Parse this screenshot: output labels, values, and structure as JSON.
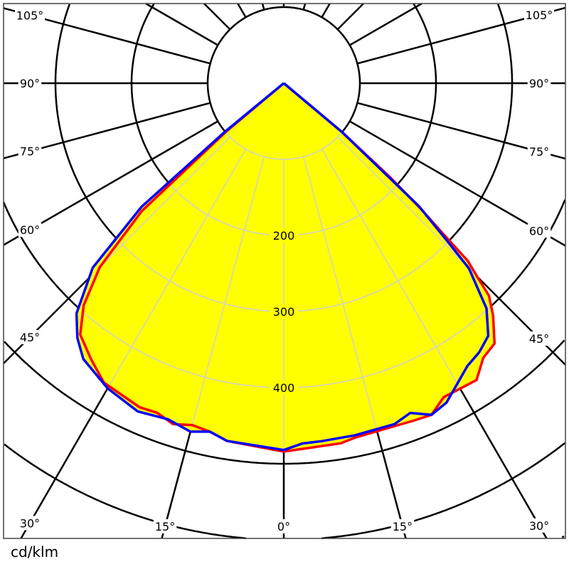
{
  "chart_data": {
    "type": "polar",
    "unit_label": "cd/klm",
    "radial_tick_labels": [
      "200",
      "300",
      "400"
    ],
    "radial_ticks": [
      200,
      300,
      400
    ],
    "radial_grid_step": 100,
    "radial_range": [
      0,
      700
    ],
    "angle_step": 15,
    "angle_tick_labels": [
      {
        "angle": -105,
        "label": "105°"
      },
      {
        "angle": -90,
        "label": "90°"
      },
      {
        "angle": -75,
        "label": "75°"
      },
      {
        "angle": -60,
        "label": "60°"
      },
      {
        "angle": -45,
        "label": "45°"
      },
      {
        "angle": -30,
        "label": "30°"
      },
      {
        "angle": -15,
        "label": "15°"
      },
      {
        "angle": 0,
        "label": "0°"
      },
      {
        "angle": 15,
        "label": "15°"
      },
      {
        "angle": 30,
        "label": "30°"
      },
      {
        "angle": 45,
        "label": "45°"
      },
      {
        "angle": 60,
        "label": "60°"
      },
      {
        "angle": 75,
        "label": "75°"
      },
      {
        "angle": 90,
        "label": "90°"
      },
      {
        "angle": 105,
        "label": "105°"
      }
    ],
    "fill_color": "#ffff00",
    "grid_color_outside": "#000000",
    "grid_color_inside": "#d0d0d0",
    "series": [
      {
        "color": "#ff0000",
        "points": [
          [
            -90,
            0
          ],
          [
            -50,
            100
          ],
          [
            -48,
            251
          ],
          [
            -45,
            342
          ],
          [
            -42,
            393
          ],
          [
            -39,
            425
          ],
          [
            -35,
            442
          ],
          [
            -31,
            459
          ],
          [
            -24,
            466
          ],
          [
            -21,
            464
          ],
          [
            -18,
            471
          ],
          [
            -15,
            465
          ],
          [
            -12,
            468
          ],
          [
            -9,
            476
          ],
          [
            0,
            484
          ],
          [
            3,
            481
          ],
          [
            9,
            479
          ],
          [
            11.4,
            475
          ],
          [
            21,
            475
          ],
          [
            24,
            477
          ],
          [
            27,
            463
          ],
          [
            33,
            465
          ],
          [
            36,
            446
          ],
          [
            39,
            440
          ],
          [
            42,
            411
          ],
          [
            44,
            388
          ],
          [
            45,
            359
          ],
          [
            46,
            336
          ],
          [
            46.5,
            296
          ],
          [
            47.5,
            244
          ],
          [
            48.5,
            187
          ],
          [
            50,
            100
          ],
          [
            90,
            0
          ]
        ]
      },
      {
        "color": "#0000ff",
        "points": [
          [
            -90,
            0
          ],
          [
            -50.5,
            100
          ],
          [
            -49,
            248
          ],
          [
            -46,
            349
          ],
          [
            -42,
            407
          ],
          [
            -39,
            431
          ],
          [
            -36,
            448
          ],
          [
            -30,
            463
          ],
          [
            -24,
            472
          ],
          [
            -19,
            467
          ],
          [
            -15,
            474
          ],
          [
            -12,
            468
          ],
          [
            -9,
            476
          ],
          [
            0,
            482
          ],
          [
            3,
            474
          ],
          [
            6,
            473
          ],
          [
            11.4,
            472
          ],
          [
            18,
            471
          ],
          [
            21,
            464
          ],
          [
            24,
            477
          ],
          [
            27,
            471
          ],
          [
            33,
            443
          ],
          [
            36,
            437
          ],
          [
            39,
            427
          ],
          [
            42,
            398
          ],
          [
            45,
            344
          ],
          [
            46,
            299
          ],
          [
            47.7,
            240
          ],
          [
            50,
            100
          ],
          [
            90,
            0
          ]
        ]
      }
    ]
  }
}
